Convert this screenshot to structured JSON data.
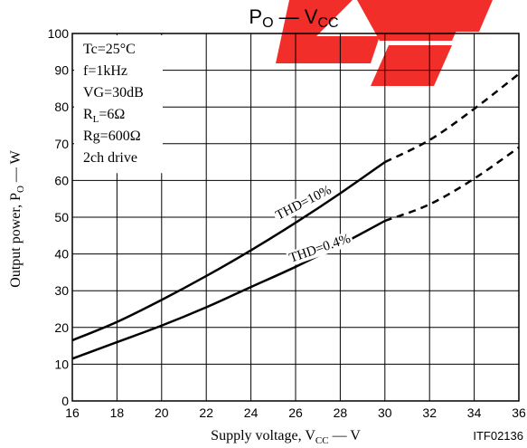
{
  "chart_data": {
    "type": "line",
    "title": {
      "main": "P",
      "sub": "O",
      "sep": " — ",
      "main2": "V",
      "sub2": "CC"
    },
    "xlabel": {
      "main": "Supply voltage, V",
      "sub": "CC",
      "suffix": " — V"
    },
    "ylabel": {
      "main": "Output power, P",
      "sub": "O",
      "suffix": " — W"
    },
    "xlim": [
      16,
      36
    ],
    "ylim": [
      0,
      100
    ],
    "xticks": [
      16,
      18,
      20,
      22,
      24,
      26,
      28,
      30,
      32,
      34,
      36
    ],
    "yticks": [
      0,
      10,
      20,
      30,
      40,
      50,
      60,
      70,
      80,
      90,
      100
    ],
    "grid": true,
    "conditions": [
      {
        "text": "Tc=25°C"
      },
      {
        "text": "f=1kHz"
      },
      {
        "text": "VG=30dB"
      },
      {
        "main": "R",
        "sub": "L",
        "rest": "=6Ω"
      },
      {
        "text": "Rg=600Ω"
      },
      {
        "text": "2ch drive"
      }
    ],
    "series": [
      {
        "name": "THD=10%",
        "solid": [
          [
            16,
            16.5
          ],
          [
            18,
            21.5
          ],
          [
            20,
            27.5
          ],
          [
            22,
            34
          ],
          [
            24,
            41
          ],
          [
            26,
            48.5
          ],
          [
            28,
            56.5
          ],
          [
            30,
            65
          ]
        ],
        "dashed": [
          [
            30,
            65
          ],
          [
            32,
            71
          ],
          [
            34,
            79.5
          ],
          [
            36,
            89
          ]
        ]
      },
      {
        "name": "THD=0.4%",
        "solid": [
          [
            16,
            11.5
          ],
          [
            18,
            16
          ],
          [
            20,
            20.5
          ],
          [
            22,
            25.5
          ],
          [
            24,
            31
          ],
          [
            26,
            36.5
          ],
          [
            28,
            42.5
          ],
          [
            30,
            49
          ]
        ],
        "dashed": [
          [
            30,
            49
          ],
          [
            32,
            53.5
          ],
          [
            34,
            60.5
          ],
          [
            36,
            69
          ]
        ]
      }
    ],
    "code": "ITF02136"
  }
}
